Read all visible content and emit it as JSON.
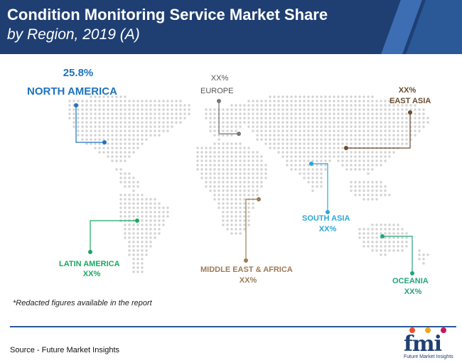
{
  "title": {
    "line1": "Condition Monitoring Service Market Share",
    "line2": "by Region, 2019 (A)"
  },
  "regions": {
    "north_america": {
      "value": "25.8%",
      "name": "NORTH AMERICA",
      "color": "#1e73be"
    },
    "europe": {
      "value": "XX%",
      "name": "EUROPE",
      "color": "#777777"
    },
    "east_asia": {
      "value": "XX%",
      "name": "EAST ASIA",
      "color": "#6b4a2e"
    },
    "south_asia": {
      "value": "XX%",
      "name": "SOUTH ASIA",
      "color": "#2aa7d6"
    },
    "latin_america": {
      "value": "XX%",
      "name": "LATIN AMERICA",
      "color": "#17a862"
    },
    "middle_east_africa": {
      "value": "XX%",
      "name": "MIDDLE EAST & AFRICA",
      "color": "#9b7b55"
    },
    "oceania": {
      "value": "XX%",
      "name": "OCEANIA",
      "color": "#23a57a"
    }
  },
  "footnote": "*Redacted figures available in the report",
  "source": "Source - Future Market Insights",
  "logo": {
    "text": "fmi",
    "subtitle": "Future Market Insights"
  },
  "colors": {
    "header": "#1f3f73",
    "accent": "#2b5896",
    "map_dots": "#d2d2d2"
  }
}
